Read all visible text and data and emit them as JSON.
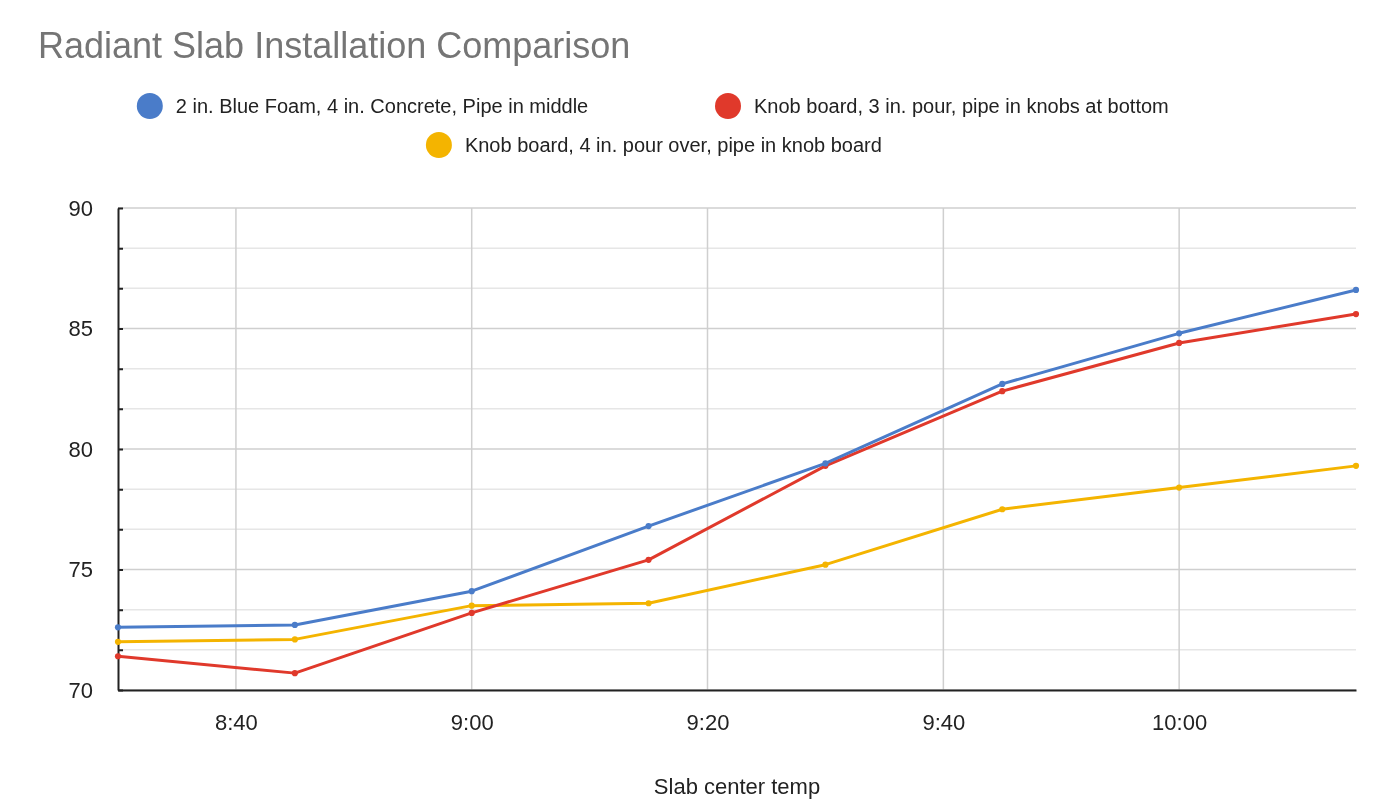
{
  "chart_data": {
    "type": "line",
    "title": "Radiant Slab Installation Comparison",
    "xlabel": "Slab center temp",
    "x": [
      8.5,
      8.75,
      9,
      9.25,
      9.5,
      9.75,
      10,
      10.25
    ],
    "xlim": [
      8.5,
      10.25
    ],
    "xticks": [
      {
        "value": 8.6667,
        "label": "8:40"
      },
      {
        "value": 9,
        "label": "9:00"
      },
      {
        "value": 9.3333,
        "label": "9:20"
      },
      {
        "value": 9.6667,
        "label": "9:40"
      },
      {
        "value": 10,
        "label": "10:00"
      }
    ],
    "ylim": [
      70,
      90
    ],
    "yticks": [
      70,
      {
        "value": 71.67,
        "label": null
      },
      {
        "value": 73.33,
        "label": null
      },
      75,
      {
        "value": 76.67,
        "label": null
      },
      {
        "value": 78.33,
        "label": null
      },
      80,
      {
        "value": 81.67,
        "label": null
      },
      {
        "value": 83.33,
        "label": null
      },
      85,
      {
        "value": 86.67,
        "label": null
      },
      {
        "value": 88.33,
        "label": null
      },
      90
    ],
    "grid": true,
    "legend": "top",
    "marker": "circle",
    "line_style": "solid",
    "series": [
      {
        "name": "2 in. Blue Foam, 4 in. Concrete, Pipe in middle",
        "color": "#4a7cc9",
        "values": [
          72.6,
          72.7,
          74.1,
          76.8,
          79.4,
          82.7,
          84.8,
          86.6
        ]
      },
      {
        "name": "Knob board, 3 in. pour, pipe in knobs at bottom",
        "color": "#e0392b",
        "values": [
          71.4,
          70.7,
          73.2,
          75.4,
          79.3,
          82.4,
          84.4,
          85.6
        ]
      },
      {
        "name": "Knob board, 4 in. pour over, pipe in knob board",
        "color": "#f4b400",
        "values": [
          72.0,
          72.1,
          73.5,
          73.6,
          75.2,
          77.5,
          78.4,
          79.3
        ]
      }
    ]
  }
}
